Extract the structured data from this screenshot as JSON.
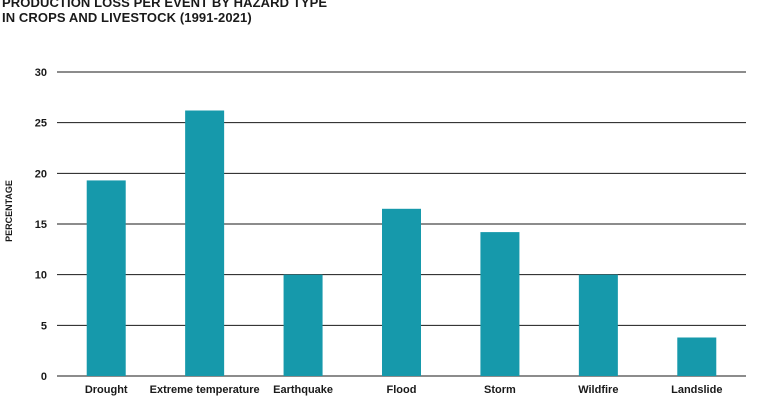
{
  "chart_data": {
    "type": "bar",
    "title_line1": "PRODUCTION LOSS PER EVENT BY HAZARD TYPE",
    "title_line2": "IN CROPS AND LIVESTOCK (1991-2021)",
    "ylabel": "PERCENTAGE",
    "xlabel": "",
    "categories": [
      "Drought",
      "Extreme temperature",
      "Earthquake",
      "Flood",
      "Storm",
      "Wildfire",
      "Landslide"
    ],
    "values": [
      19.3,
      26.2,
      10.0,
      16.5,
      14.2,
      10.0,
      3.8
    ],
    "ylim": [
      0,
      30
    ],
    "yticks": [
      0,
      5,
      10,
      15,
      20,
      25,
      30
    ],
    "grid": true,
    "bar_color": "#1699ab",
    "grid_color": "#1a1a1a"
  }
}
